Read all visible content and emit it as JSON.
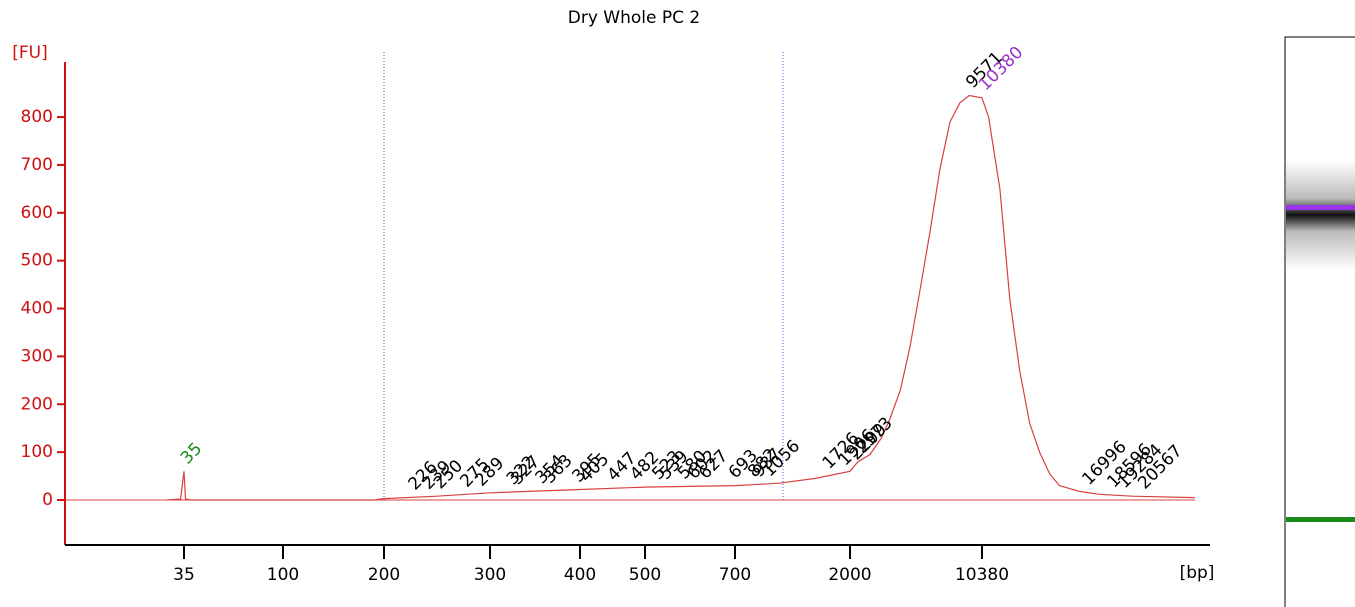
{
  "chart_data": {
    "type": "line",
    "title": "Dry Whole PC 2",
    "y_label": "[FU]",
    "x_label": "[bp]",
    "series": [
      {
        "name": "Dry Whole PC 2",
        "color": "#d94040",
        "x": [
          30,
          34,
          35,
          36,
          40,
          190,
          200,
          250,
          300,
          400,
          500,
          700,
          900,
          1200,
          1600,
          2000,
          2500,
          3270,
          4000,
          4540,
          5200,
          5810,
          6400,
          7080,
          7700,
          8350,
          8985,
          9571,
          10380,
          10800,
          11523,
          12160,
          12793,
          13430,
          14063,
          14700,
          15333,
          16600,
          17873,
          20000,
          24000
        ],
        "values": [
          0,
          2,
          60,
          2,
          0,
          0,
          3,
          8,
          15,
          22,
          27,
          30,
          32,
          35,
          45,
          60,
          80,
          95,
          130,
          170,
          230,
          320,
          430,
          560,
          690,
          790,
          830,
          845,
          840,
          800,
          650,
          420,
          270,
          160,
          100,
          55,
          30,
          18,
          12,
          8,
          5
        ]
      }
    ],
    "peaks": [
      35,
      226,
      239,
      250,
      275,
      289,
      322,
      327,
      354,
      363,
      395,
      405,
      447,
      482,
      523,
      539,
      580,
      602,
      627,
      693,
      882,
      937,
      1056,
      1726,
      1906,
      2209,
      2573,
      9571,
      10380,
      16996,
      18596,
      19284,
      20567
    ],
    "peak_colors": [
      "#1a8a1a",
      "#000000",
      "#000000",
      "#000000",
      "#000000",
      "#000000",
      "#000000",
      "#000000",
      "#000000",
      "#000000",
      "#000000",
      "#000000",
      "#000000",
      "#000000",
      "#000000",
      "#000000",
      "#000000",
      "#000000",
      "#000000",
      "#000000",
      "#000000",
      "#000000",
      "#000000",
      "#000000",
      "#000000",
      "#000000",
      "#000000",
      "#000000",
      "#9933cc",
      "#000000",
      "#000000",
      "#000000",
      "#000000"
    ],
    "xlim": [
      0,
      24000
    ],
    "xticks": [
      35,
      100,
      200,
      300,
      400,
      500,
      700,
      2000,
      10380
    ],
    "ylim": [
      -94,
      915
    ],
    "yticks": [
      0,
      100,
      200,
      300,
      400,
      500,
      600,
      700,
      800
    ]
  }
}
